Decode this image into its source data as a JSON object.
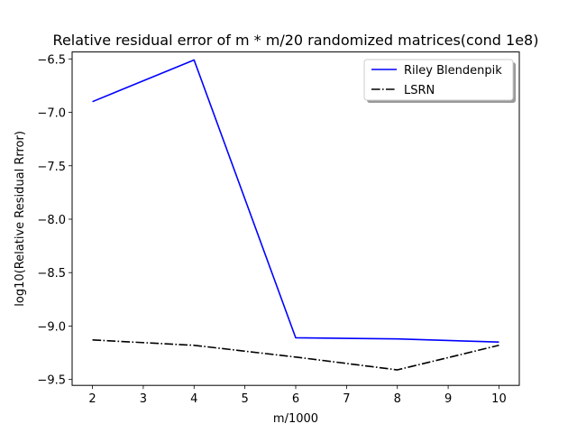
{
  "chart_data": {
    "type": "line",
    "title": "Relative residual error of m * m/20 randomized matrices(cond 1e8)",
    "xlabel": "m/1000",
    "ylabel": "log10(Relative Residual Rrror)",
    "x": [
      2,
      4,
      6,
      8,
      10
    ],
    "xlim": [
      1.6,
      10.4
    ],
    "ylim": [
      -9.555,
      -6.435
    ],
    "xticks": [
      2,
      3,
      4,
      5,
      6,
      7,
      8,
      9,
      10
    ],
    "yticks": [
      -6.5,
      -7.0,
      -7.5,
      -8.0,
      -8.5,
      -9.0,
      -9.5
    ],
    "ytick_labels": [
      "−6.5",
      "−7.0",
      "−7.5",
      "−8.0",
      "−8.5",
      "−9.0",
      "−9.5"
    ],
    "grid": false,
    "legend_position": "top-right",
    "series": [
      {
        "name": "Riley Blendenpik",
        "values": [
          -6.9,
          -6.51,
          -9.11,
          -9.12,
          -9.15
        ],
        "color": "#0000ff",
        "dash": "solid"
      },
      {
        "name": "LSRN",
        "values": [
          -9.13,
          -9.18,
          -9.29,
          -9.41,
          -9.18
        ],
        "color": "#000000",
        "dash": "dashdot"
      }
    ]
  }
}
